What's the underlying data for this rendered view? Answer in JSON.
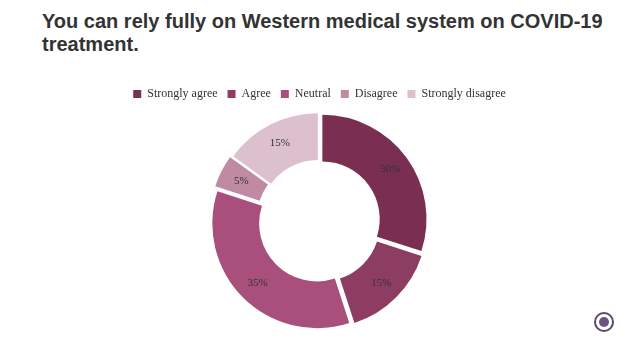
{
  "chart_data": {
    "type": "doughnut",
    "title": "You can rely fully on Western medical system on COVID-19 treatment.",
    "categories": [
      "Strongly agree",
      "Agree",
      "Neutral",
      "Disagree",
      "Strongly disagree"
    ],
    "values": [
      30,
      15,
      35,
      5,
      15
    ],
    "value_labels": [
      "30%",
      "15%",
      "35%",
      "5%",
      "15%"
    ],
    "colors": [
      "#7a2e52",
      "#8e3d62",
      "#a84f7c",
      "#c08aa2",
      "#dcc0cd"
    ],
    "legend": "top",
    "data_labels": true
  }
}
